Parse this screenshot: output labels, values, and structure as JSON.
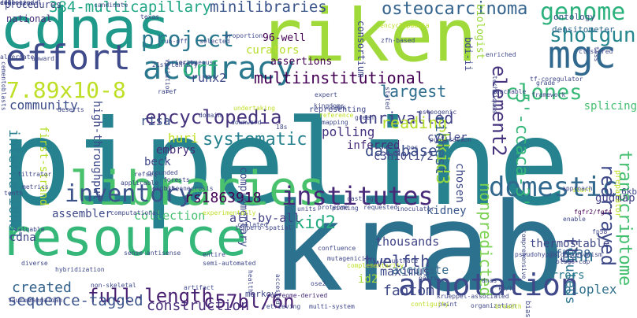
{
  "words": [
    {
      "text": "pipeline",
      "color": "#26828e"
    },
    {
      "text": "krab",
      "color": "#2c728e"
    },
    {
      "text": "riken",
      "color": "#9fda3a"
    },
    {
      "text": "cdnas",
      "color": "#1f9a8a"
    },
    {
      "text": "resource",
      "color": "#35b779"
    },
    {
      "text": "libraries",
      "color": "#4ac16d"
    },
    {
      "text": "mgc",
      "color": "#31688e"
    },
    {
      "text": "accuracy",
      "color": "#2a788e"
    },
    {
      "text": "effort",
      "color": "#3e4a89"
    },
    {
      "text": "annotation",
      "color": "#3f4889"
    },
    {
      "text": "institutes",
      "color": "#482878"
    },
    {
      "text": "project",
      "color": "#2a788e"
    },
    {
      "text": "domestic",
      "color": "#31688e"
    },
    {
      "text": "shotgun",
      "color": "#24868e"
    },
    {
      "text": "genome",
      "color": "#2db27d"
    },
    {
      "text": "osteocarcinoma",
      "color": "#33638d"
    },
    {
      "text": "full-length",
      "color": "#481f70"
    },
    {
      "text": "c57bl/6n",
      "color": "#482173"
    },
    {
      "text": "inventory",
      "color": "#3b528b"
    },
    {
      "text": "encyclopedia",
      "color": "#46337e"
    },
    {
      "text": "7.89x10-8",
      "color": "#bddf26"
    },
    {
      "text": "clones",
      "color": "#38b977"
    },
    {
      "text": "orf",
      "color": "#2fb47c"
    },
    {
      "text": "element2",
      "color": "#46337e"
    },
    {
      "text": "rearrayed",
      "color": "#3e4989"
    },
    {
      "text": "transcriptome",
      "color": "#44bf70"
    },
    {
      "text": "multiinstitutional",
      "color": "#440154"
    },
    {
      "text": "384-multicapillary",
      "color": "#21a685"
    },
    {
      "text": "minilibraries",
      "color": "#3a548c"
    },
    {
      "text": "unrivalled",
      "color": "#424086"
    },
    {
      "text": "systematic",
      "color": "#26818e"
    },
    {
      "text": "community",
      "color": "#3d4d8a"
    },
    {
      "text": "largest",
      "color": "#2e6e8e"
    },
    {
      "text": "database",
      "color": "#3c4f8a"
    },
    {
      "text": "5'-ccaca-3'",
      "color": "#35b779"
    },
    {
      "text": "rs1863918",
      "color": "#440154"
    },
    {
      "text": "twelfth",
      "color": "#3f4889"
    },
    {
      "text": "nonpredicted",
      "color": "#7ad151"
    },
    {
      "text": "fhn",
      "color": "#2d708e"
    },
    {
      "text": "sequence-tagged",
      "color": "#3b528b"
    },
    {
      "text": "created",
      "color": "#33638d"
    },
    {
      "text": "construction",
      "color": "#472d7b"
    },
    {
      "text": "fantom",
      "color": "#3e4989"
    },
    {
      "text": "gluteus",
      "color": "#2a768e"
    },
    {
      "text": "bioplex",
      "color": "#2e6f8e"
    },
    {
      "text": "zfp238",
      "color": "#355f8d"
    },
    {
      "text": "flj",
      "color": "#3f4788"
    },
    {
      "text": "reading",
      "color": "#b5de2b"
    },
    {
      "text": "polling",
      "color": "#46327e"
    },
    {
      "text": "thousands",
      "color": "#414487"
    },
    {
      "text": "accurate",
      "color": "#31688e"
    },
    {
      "text": "kid2",
      "color": "#27ad81"
    },
    {
      "text": "kidney",
      "color": "#39568c"
    },
    {
      "text": "maximus",
      "color": "#3e4a89"
    },
    {
      "text": "hkid3",
      "color": "#9bd93c"
    },
    {
      "text": "richest",
      "color": "#355f8d"
    },
    {
      "text": "chosen",
      "color": "#3e4a89"
    },
    {
      "text": "inferred",
      "color": "#472a7a"
    },
    {
      "text": "cycler",
      "color": "#404588"
    },
    {
      "text": "c3h10t1/2",
      "color": "#414487"
    },
    {
      "text": "international",
      "color": "#287d8e"
    },
    {
      "text": "huri",
      "color": "#c2df23"
    },
    {
      "text": "risa",
      "color": "#3b528b"
    },
    {
      "text": "runx2",
      "color": "#3f4889"
    },
    {
      "text": "embrys",
      "color": "#472c7a"
    },
    {
      "text": "beck",
      "color": "#3f4889"
    },
    {
      "text": "collection",
      "color": "#44bf70"
    },
    {
      "text": "all-by-all",
      "color": "#424086"
    },
    {
      "text": "assembler",
      "color": "#3e4a89"
    },
    {
      "text": "cdna",
      "color": "#404588"
    },
    {
      "text": "thermostable",
      "color": "#3f4889"
    },
    {
      "text": "errors",
      "color": "#2a788e"
    },
    {
      "text": "id2",
      "color": "#a5db36"
    },
    {
      "text": "splicing",
      "color": "#44bf70"
    },
    {
      "text": "gudmap",
      "color": "#424086"
    },
    {
      "text": "6kb",
      "color": "#3e4a89"
    },
    {
      "text": "ontology",
      "color": "#3b528b"
    },
    {
      "text": "densitometer",
      "color": "#31688e"
    },
    {
      "text": "consortium",
      "color": "#404688"
    },
    {
      "text": "procedures",
      "color": "#3f4788"
    },
    {
      "text": "national",
      "color": "#46327e"
    },
    {
      "text": "96-well",
      "color": "#440154"
    },
    {
      "text": "curators",
      "color": "#b5de2b"
    },
    {
      "text": "assertions",
      "color": "#440154"
    },
    {
      "text": "biologist",
      "color": "#9bd93c"
    },
    {
      "text": "bdi-ii",
      "color": "#3f4889"
    },
    {
      "text": "21st-century",
      "color": "#3e4a89"
    },
    {
      "text": "high-throughput",
      "color": "#3e4989"
    },
    {
      "text": "first-strand",
      "color": "#b5de2b"
    },
    {
      "text": "osteonecrosis",
      "color": "#3f4889"
    },
    {
      "text": "complementary",
      "color": "#3e4989"
    },
    {
      "text": "preparator",
      "color": "#bddf26"
    },
    {
      "text": "entire",
      "color": "#3f4889"
    },
    {
      "text": "markov",
      "color": "#3e4989"
    },
    {
      "text": "orfeome-derived",
      "color": "#472c7a"
    },
    {
      "text": "non-skeletal",
      "color": "#3e4989"
    },
    {
      "text": "mammalian",
      "color": "#3f4889"
    },
    {
      "text": "taurus",
      "color": "#3f4889"
    },
    {
      "text": "diverse",
      "color": "#3e4989"
    },
    {
      "text": "paint",
      "color": "#404588"
    },
    {
      "text": "bias",
      "color": "#3f4889"
    },
    {
      "text": "pairs",
      "color": "#3f4889"
    },
    {
      "text": "filtrator",
      "color": "#3f4889"
    },
    {
      "text": "forests",
      "color": "#3f4889"
    },
    {
      "text": "grounded",
      "color": "#3f4889"
    },
    {
      "text": "eighth",
      "color": "#3f4889"
    },
    {
      "text": "metrics",
      "color": "#3f4889"
    },
    {
      "text": "tenth",
      "color": "#3f4889"
    },
    {
      "text": "start",
      "color": "#bddf26"
    },
    {
      "text": "fgfr2/fgf4",
      "color": "#440154"
    },
    {
      "text": "fp58",
      "color": "#3f4889"
    },
    {
      "text": "dnas",
      "color": "#3e4989"
    },
    {
      "text": "enable",
      "color": "#3f4889"
    },
    {
      "text": "comprehensive",
      "color": "#3f4889"
    },
    {
      "text": "representing",
      "color": "#3f4889"
    },
    {
      "text": "reference",
      "color": "#bddf26"
    },
    {
      "text": "mapping",
      "color": "#3f4889"
    },
    {
      "text": "kingdoms",
      "color": "#3f4889"
    },
    {
      "text": "organization",
      "color": "#3f4889"
    },
    {
      "text": "illustrate",
      "color": "#3f4889"
    },
    {
      "text": "health",
      "color": "#3f4889"
    },
    {
      "text": "accessed",
      "color": "#3f4889"
    },
    {
      "text": "picking",
      "color": "#3f4889"
    },
    {
      "text": "requested",
      "color": "#3f4889"
    },
    {
      "text": "inoculator",
      "color": "#3f4889"
    },
    {
      "text": "proteome",
      "color": "#3f4889"
    },
    {
      "text": "units",
      "color": "#3f4889"
    },
    {
      "text": "artifact",
      "color": "#3f4889"
    },
    {
      "text": "retrieving",
      "color": "#3f4889"
    },
    {
      "text": "multi-system",
      "color": "#3f4889"
    },
    {
      "text": "alternate",
      "color": "#3f4889"
    },
    {
      "text": "cementoblasts",
      "color": "#3f4889"
    },
    {
      "text": "run-off",
      "color": "#3f4889"
    },
    {
      "text": "erroneous",
      "color": "#3f4889"
    },
    {
      "text": "proportion",
      "color": "#3f4889"
    },
    {
      "text": "variation",
      "color": "#3f4889"
    },
    {
      "text": "enriched",
      "color": "#3f4889"
    },
    {
      "text": "clustered",
      "color": "#3f4889"
    },
    {
      "text": "tsss",
      "color": "#3f4889"
    },
    {
      "text": "zfh-based",
      "color": "#3f4889"
    },
    {
      "text": "encyclopaedia",
      "color": "#bddf26"
    },
    {
      "text": "texas",
      "color": "#3f4889"
    },
    {
      "text": "candidate",
      "color": "#3f4889"
    },
    {
      "text": "selected",
      "color": "#3f4889"
    },
    {
      "text": "raref",
      "color": "#3f4889"
    },
    {
      "text": "undertaking",
      "color": "#bddf26"
    },
    {
      "text": "paps",
      "color": "#3f4889"
    },
    {
      "text": "collated",
      "color": "#3f4889"
    },
    {
      "text": "computational",
      "color": "#3f4889"
    },
    {
      "text": "valuable",
      "color": "#3f4889"
    },
    {
      "text": "hybridization",
      "color": "#3f4889"
    },
    {
      "text": "semi-automated",
      "color": "#3f4889"
    },
    {
      "text": "krueppel-associated",
      "color": "#3f4889"
    },
    {
      "text": "breadth",
      "color": "#bddf26"
    },
    {
      "text": "contiguity",
      "color": "#bddf26"
    },
    {
      "text": "mutagenicity",
      "color": "#3f4889"
    },
    {
      "text": "casting",
      "color": "#3f4889"
    },
    {
      "text": "tempero-spatial",
      "color": "#3f4889"
    },
    {
      "text": "approach",
      "color": "#3f4889"
    },
    {
      "text": "downward",
      "color": "#3f4889"
    },
    {
      "text": "sense-antisense",
      "color": "#3f4889"
    },
    {
      "text": "pseudohypoaldosteronism",
      "color": "#3f4889"
    },
    {
      "text": "oligo-cap",
      "color": "#3f4889"
    },
    {
      "text": "kb/h",
      "color": "#3f4889"
    },
    {
      "text": "tf-coregulator",
      "color": "#3f4889"
    },
    {
      "text": "techniques",
      "color": "#3f4889"
    },
    {
      "text": "priority",
      "color": "#3f4889"
    },
    {
      "text": "deserts",
      "color": "#3f4889"
    },
    {
      "text": "refseq",
      "color": "#3f4889"
    },
    {
      "text": "experimentally",
      "color": "#bddf26"
    },
    {
      "text": "confluence",
      "color": "#3f4889"
    },
    {
      "text": "publication",
      "color": "#3f4889"
    },
    {
      "text": "expert",
      "color": "#3f4889"
    },
    {
      "text": "bos",
      "color": "#3f4889"
    },
    {
      "text": "osteogenic",
      "color": "#3f4889"
    },
    {
      "text": "peachable",
      "color": "#3f4889"
    },
    {
      "text": "grade",
      "color": "#3f4889"
    },
    {
      "text": "framework",
      "color": "#3f4889"
    },
    {
      "text": "stated",
      "color": "#3f4889"
    },
    {
      "text": "ose2",
      "color": "#3f4889"
    },
    {
      "text": "upward",
      "color": "#3f4889"
    },
    {
      "text": "applicable",
      "color": "#3f4889"
    },
    {
      "text": "domain",
      "color": "#3f4889"
    },
    {
      "text": "complementarity",
      "color": "#bddf26"
    },
    {
      "text": "18s",
      "color": "#3f4889"
    },
    {
      "text": "green",
      "color": "#3f4889"
    },
    {
      "text": "dimensional",
      "color": "#3f4889"
    },
    {
      "text": "cell-type",
      "color": "#3f4889"
    },
    {
      "text": "sequenced",
      "color": "#3f4889"
    },
    {
      "text": "ctx",
      "color": "#3f4889"
    },
    {
      "text": "cdf",
      "color": "#3f4889"
    }
  ]
}
